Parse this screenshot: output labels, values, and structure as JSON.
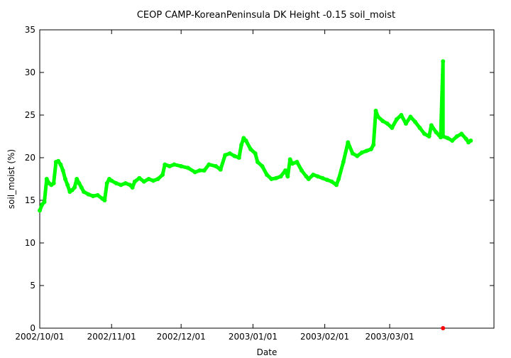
{
  "chart_data": {
    "type": "line",
    "title": "CEOP  CAMP-KoreanPeninsula DK Height -0.15 soil_moist",
    "xlabel": "Date",
    "ylabel": "soil_moist (%)",
    "x_axis": {
      "type": "date",
      "min": "2002-10-01",
      "max": "2003-04-15",
      "ticks": [
        {
          "date": "2002-10-01",
          "label": "2002/10/01"
        },
        {
          "date": "2002-11-01",
          "label": "2002/11/01"
        },
        {
          "date": "2002-12-01",
          "label": "2002/12/01"
        },
        {
          "date": "2003-01-01",
          "label": "2003/01/01"
        },
        {
          "date": "2003-02-01",
          "label": "2003/02/01"
        },
        {
          "date": "2003-03-01",
          "label": "2003/03/01"
        }
      ]
    },
    "y_axis": {
      "min": 0,
      "max": 35,
      "ticks": [
        0,
        5,
        10,
        15,
        20,
        25,
        30,
        35
      ]
    },
    "grid": false,
    "legend": "none",
    "series": [
      {
        "color": "#00ff00",
        "points": [
          [
            "2002-10-01",
            13.8
          ],
          [
            "2002-10-02",
            14.5
          ],
          [
            "2002-10-03",
            14.8
          ],
          [
            "2002-10-04",
            17.5
          ],
          [
            "2002-10-05",
            17.0
          ],
          [
            "2002-10-06",
            16.8
          ],
          [
            "2002-10-07",
            17.0
          ],
          [
            "2002-10-08",
            19.5
          ],
          [
            "2002-10-09",
            19.6
          ],
          [
            "2002-10-10",
            19.2
          ],
          [
            "2002-10-11",
            18.5
          ],
          [
            "2002-10-12",
            17.5
          ],
          [
            "2002-10-13",
            16.8
          ],
          [
            "2002-10-14",
            16.0
          ],
          [
            "2002-10-15",
            16.2
          ],
          [
            "2002-10-16",
            16.5
          ],
          [
            "2002-10-17",
            17.5
          ],
          [
            "2002-10-18",
            17.0
          ],
          [
            "2002-10-19",
            16.5
          ],
          [
            "2002-10-20",
            16.0
          ],
          [
            "2002-10-22",
            15.7
          ],
          [
            "2002-10-24",
            15.5
          ],
          [
            "2002-10-26",
            15.6
          ],
          [
            "2002-10-28",
            15.2
          ],
          [
            "2002-10-29",
            15.0
          ],
          [
            "2002-10-30",
            17.0
          ],
          [
            "2002-10-31",
            17.5
          ],
          [
            "2002-11-01",
            17.3
          ],
          [
            "2002-11-03",
            17.0
          ],
          [
            "2002-11-05",
            16.8
          ],
          [
            "2002-11-07",
            17.0
          ],
          [
            "2002-11-09",
            16.8
          ],
          [
            "2002-11-10",
            16.5
          ],
          [
            "2002-11-11",
            17.2
          ],
          [
            "2002-11-13",
            17.6
          ],
          [
            "2002-11-15",
            17.2
          ],
          [
            "2002-11-17",
            17.5
          ],
          [
            "2002-11-19",
            17.3
          ],
          [
            "2002-11-21",
            17.5
          ],
          [
            "2002-11-23",
            18.0
          ],
          [
            "2002-11-24",
            19.2
          ],
          [
            "2002-11-26",
            19.0
          ],
          [
            "2002-11-28",
            19.2
          ],
          [
            "2002-12-01",
            19.0
          ],
          [
            "2002-12-04",
            18.8
          ],
          [
            "2002-12-07",
            18.3
          ],
          [
            "2002-12-09",
            18.5
          ],
          [
            "2002-12-11",
            18.5
          ],
          [
            "2002-12-13",
            19.2
          ],
          [
            "2002-12-16",
            19.0
          ],
          [
            "2002-12-18",
            18.6
          ],
          [
            "2002-12-20",
            20.3
          ],
          [
            "2002-12-22",
            20.5
          ],
          [
            "2002-12-24",
            20.2
          ],
          [
            "2002-12-26",
            20.0
          ],
          [
            "2002-12-27",
            21.5
          ],
          [
            "2002-12-28",
            22.3
          ],
          [
            "2002-12-29",
            22.0
          ],
          [
            "2002-12-31",
            21.0
          ],
          [
            "2003-01-02",
            20.5
          ],
          [
            "2003-01-03",
            19.5
          ],
          [
            "2003-01-05",
            19.0
          ],
          [
            "2003-01-07",
            18.0
          ],
          [
            "2003-01-09",
            17.5
          ],
          [
            "2003-01-11",
            17.6
          ],
          [
            "2003-01-13",
            17.8
          ],
          [
            "2003-01-15",
            18.5
          ],
          [
            "2003-01-16",
            17.8
          ],
          [
            "2003-01-17",
            19.8
          ],
          [
            "2003-01-18",
            19.3
          ],
          [
            "2003-01-20",
            19.5
          ],
          [
            "2003-01-22",
            18.5
          ],
          [
            "2003-01-24",
            17.8
          ],
          [
            "2003-01-25",
            17.5
          ],
          [
            "2003-01-27",
            18.0
          ],
          [
            "2003-01-29",
            17.8
          ],
          [
            "2003-01-31",
            17.6
          ],
          [
            "2003-02-02",
            17.4
          ],
          [
            "2003-02-04",
            17.2
          ],
          [
            "2003-02-06",
            16.8
          ],
          [
            "2003-02-07",
            17.5
          ],
          [
            "2003-02-09",
            19.5
          ],
          [
            "2003-02-11",
            21.8
          ],
          [
            "2003-02-13",
            20.5
          ],
          [
            "2003-02-15",
            20.2
          ],
          [
            "2003-02-17",
            20.6
          ],
          [
            "2003-02-19",
            20.8
          ],
          [
            "2003-02-21",
            21.0
          ],
          [
            "2003-02-22",
            21.5
          ],
          [
            "2003-02-23",
            25.5
          ],
          [
            "2003-02-24",
            24.8
          ],
          [
            "2003-02-26",
            24.3
          ],
          [
            "2003-02-28",
            24.0
          ],
          [
            "2003-03-02",
            23.5
          ],
          [
            "2003-03-04",
            24.5
          ],
          [
            "2003-03-06",
            25.0
          ],
          [
            "2003-03-08",
            24.0
          ],
          [
            "2003-03-10",
            24.8
          ],
          [
            "2003-03-12",
            24.2
          ],
          [
            "2003-03-14",
            23.5
          ],
          [
            "2003-03-16",
            22.8
          ],
          [
            "2003-03-18",
            22.5
          ],
          [
            "2003-03-19",
            23.8
          ],
          [
            "2003-03-21",
            23.0
          ],
          [
            "2003-03-23",
            22.4
          ],
          [
            "2003-03-24",
            31.3
          ],
          [
            "2003-03-24",
            22.5
          ],
          [
            "2003-03-26",
            22.3
          ],
          [
            "2003-03-28",
            22.0
          ],
          [
            "2003-03-30",
            22.5
          ],
          [
            "2003-04-01",
            22.8
          ],
          [
            "2003-04-03",
            22.2
          ],
          [
            "2003-04-04",
            21.8
          ],
          [
            "2003-04-05",
            22.0
          ]
        ]
      },
      {
        "color": "#ff0000",
        "points": [
          [
            "2003-03-24",
            0
          ]
        ]
      }
    ]
  }
}
